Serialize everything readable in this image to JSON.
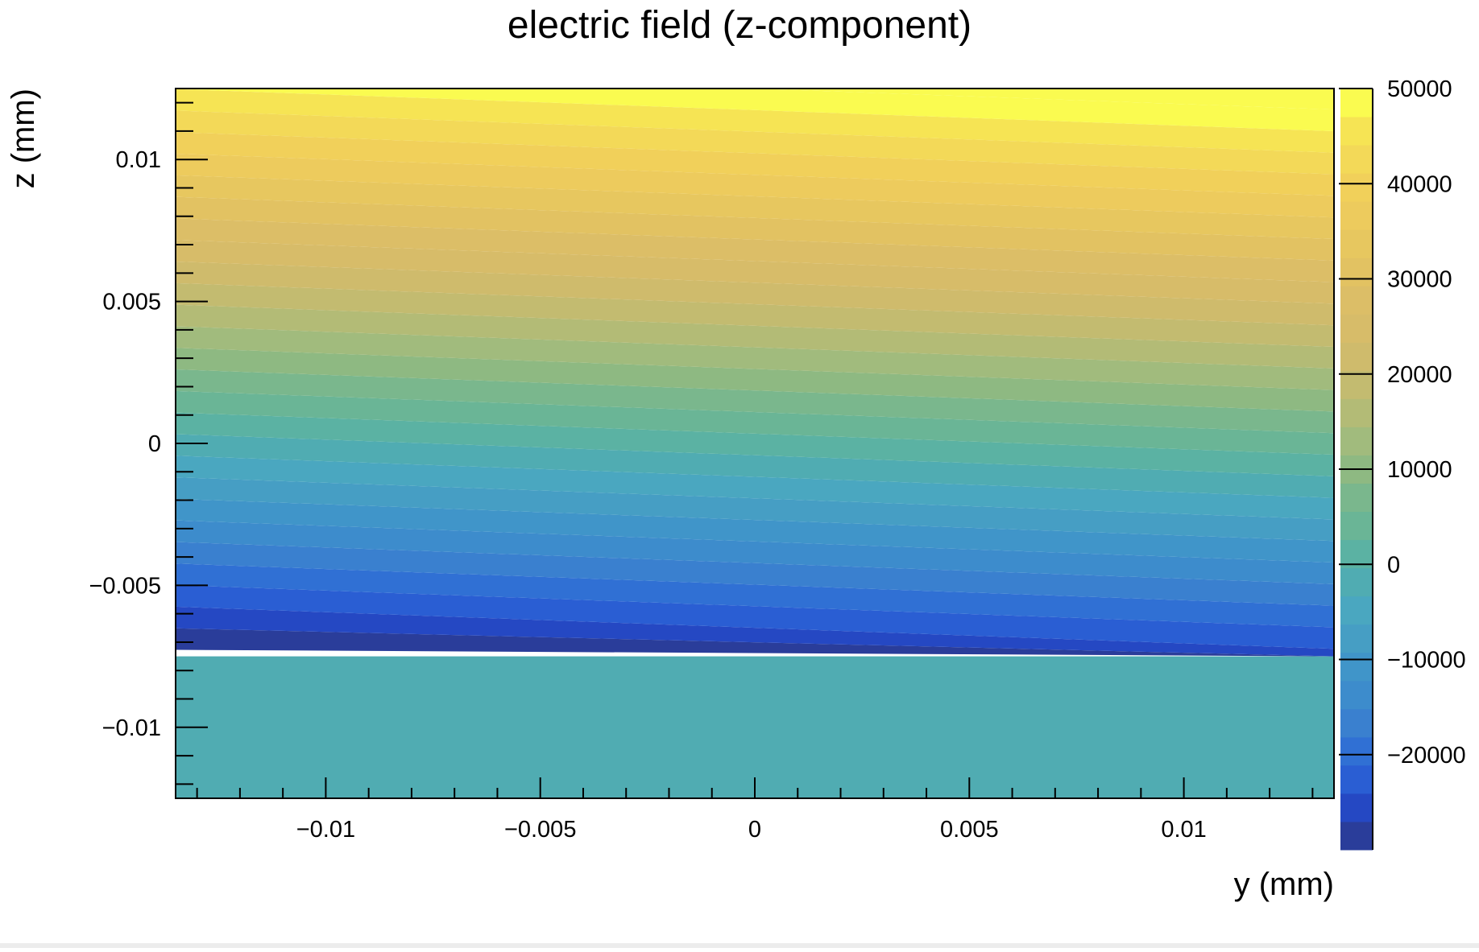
{
  "chart_data": {
    "type": "heatmap",
    "title": "electric field (z-component)",
    "xlabel": "y (mm)",
    "ylabel": "z (mm)",
    "xlim": [
      -0.0135,
      0.0135
    ],
    "ylim": [
      -0.0125,
      0.0125
    ],
    "x_ticks": [
      -0.01,
      -0.005,
      0,
      0.005,
      0.01
    ],
    "x_tick_labels": [
      "−0.01",
      "−0.005",
      "0",
      "0.005",
      "0.01"
    ],
    "y_ticks": [
      -0.01,
      -0.005,
      0,
      0.005,
      0.01
    ],
    "y_tick_labels": [
      "−0.01",
      "−0.005",
      "0",
      "0.005",
      "0.01"
    ],
    "colorbar": {
      "range": [
        -30000,
        50000
      ],
      "ticks": [
        -20000,
        -10000,
        0,
        10000,
        20000,
        30000,
        40000,
        50000
      ],
      "tick_labels": [
        "−20000",
        "−10000",
        "0",
        "10000",
        "20000",
        "30000",
        "40000",
        "50000"
      ],
      "levels": 27,
      "colors": [
        "#2a3d9a",
        "#2548c3",
        "#2a5ed3",
        "#3070d4",
        "#3a80cf",
        "#3d8ccc",
        "#4095c9",
        "#469ec4",
        "#4aa7c0",
        "#50acb2",
        "#5bb2a3",
        "#6ab596",
        "#7ab78d",
        "#8eb982",
        "#a1bb7d",
        "#b3bb76",
        "#c3bb70",
        "#cfbb6c",
        "#d7bc69",
        "#dcbe67",
        "#e2c262",
        "#e7c75f",
        "#edcb5d",
        "#f1d05a",
        "#f3d958",
        "#f6e454",
        "#fafb50"
      ]
    },
    "field": {
      "description_levels": "z-dependent linear field above z=-0.0075 with slight tilt along y; constant region below",
      "z_boundary": -0.0075,
      "value_at_z_top": 50000,
      "value_at_boundary": -28000,
      "tilt_z_over_y": 0.055,
      "below_boundary_value": -3000
    },
    "grid": false
  }
}
